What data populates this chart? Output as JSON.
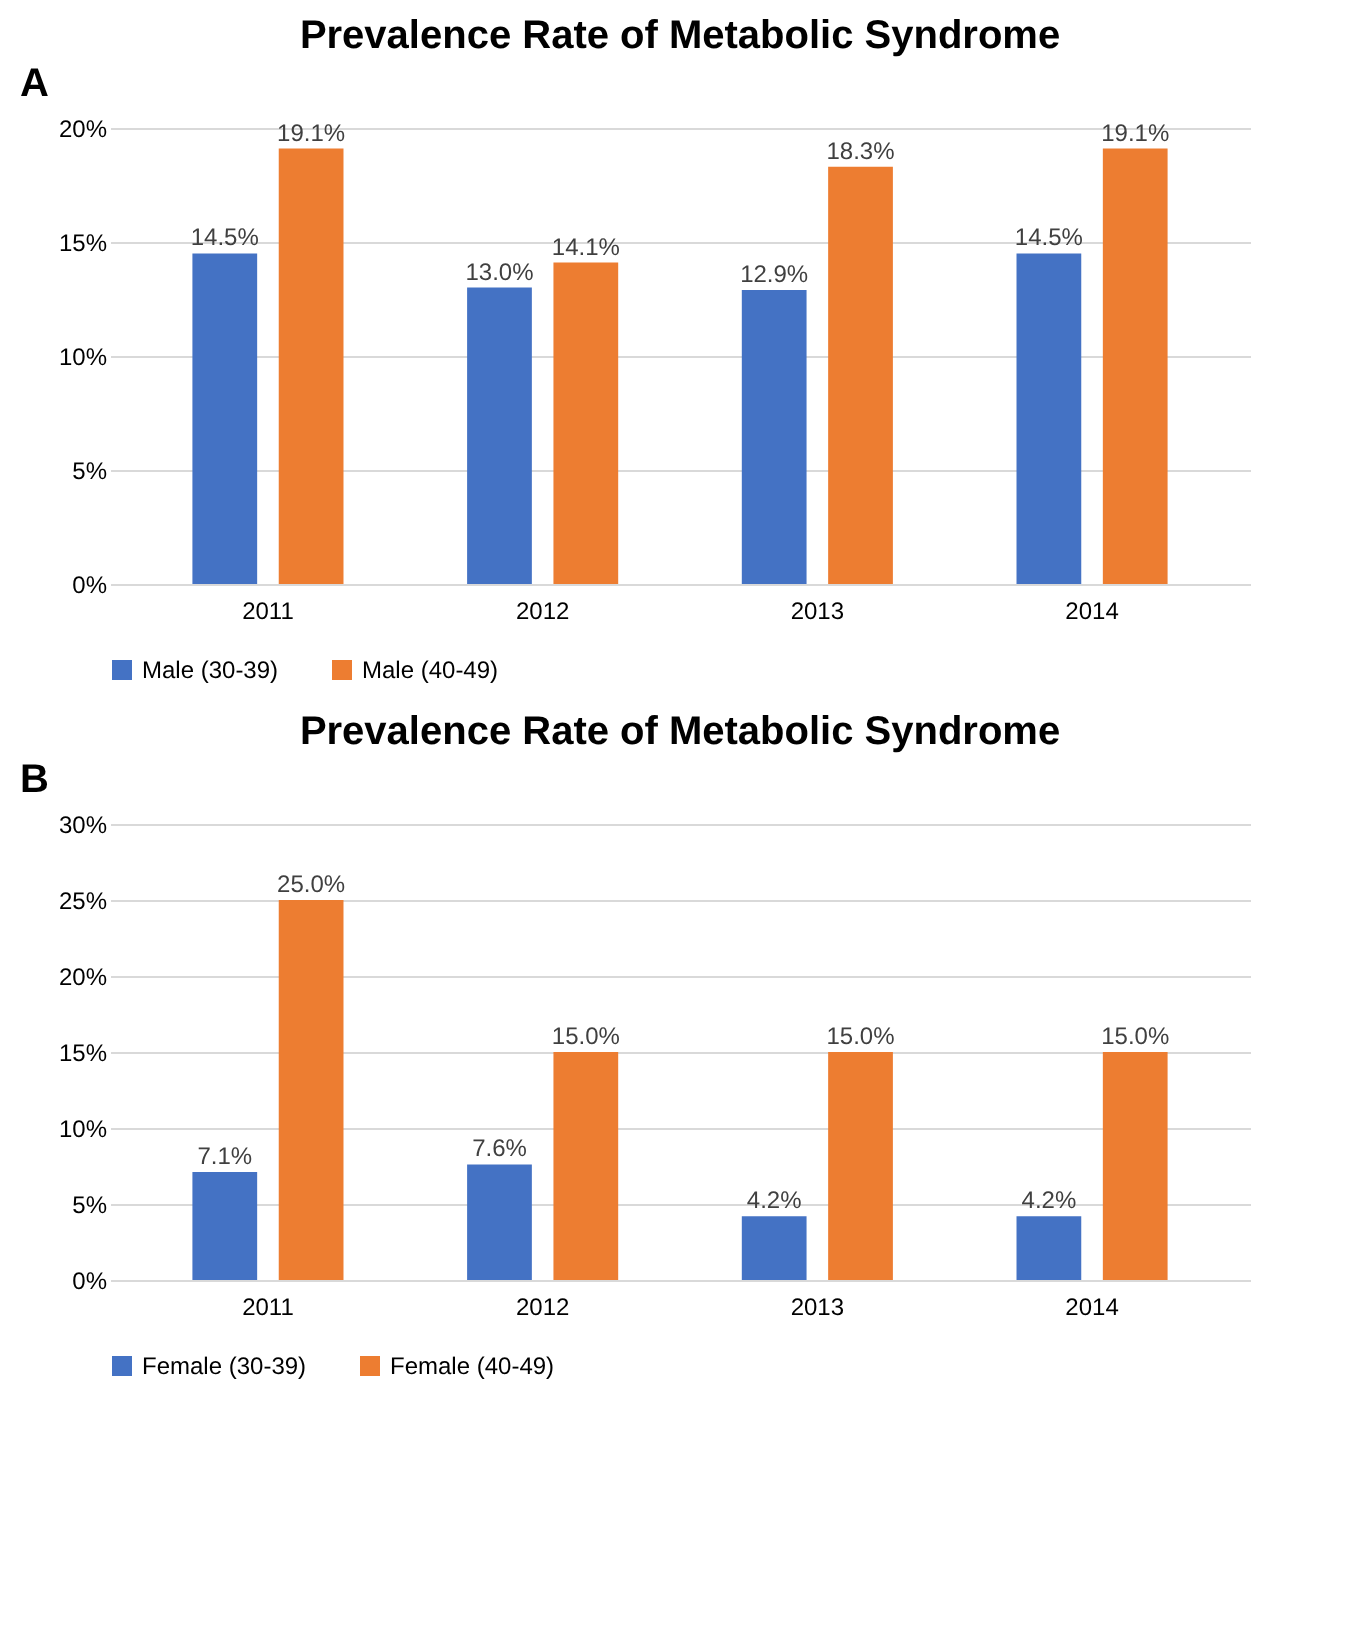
{
  "chart_data": [
    {
      "type": "bar",
      "title": "Prevalence Rate of Metabolic Syndrome",
      "annotations": [
        "A"
      ],
      "categories": [
        "2011",
        "2012",
        "2013",
        "2014"
      ],
      "series": [
        {
          "name": "Male (30-39)",
          "color": "#4472c4",
          "values": [
            14.5,
            13.0,
            12.9,
            14.5
          ],
          "value_labels": [
            "14.5%",
            "13.0%",
            "12.9%",
            "14.5%"
          ]
        },
        {
          "name": "Male (40-49)",
          "color": "#ed7d31",
          "values": [
            19.1,
            14.1,
            18.3,
            19.1
          ],
          "value_labels": [
            "19.1%",
            "14.1%",
            "18.3%",
            "19.1%"
          ]
        }
      ],
      "ylim": [
        0,
        20
      ],
      "yticks": [
        {
          "value": 0,
          "label": "0%"
        },
        {
          "value": 5,
          "label": "5%"
        },
        {
          "value": 10,
          "label": "10%"
        },
        {
          "value": 15,
          "label": "15%"
        },
        {
          "value": 20,
          "label": "20%"
        }
      ],
      "grid": "y",
      "legend": "bottom"
    },
    {
      "type": "bar",
      "title": "Prevalence Rate of Metabolic Syndrome",
      "annotations": [
        "B"
      ],
      "categories": [
        "2011",
        "2012",
        "2013",
        "2014"
      ],
      "series": [
        {
          "name": "Female (30-39)",
          "color": "#4472c4",
          "values": [
            7.1,
            7.6,
            4.2,
            4.2
          ],
          "value_labels": [
            "7.1%",
            "7.6%",
            "4.2%",
            "4.2%"
          ]
        },
        {
          "name": "Female (40-49)",
          "color": "#ed7d31",
          "values": [
            25.0,
            15.0,
            15.0,
            15.0
          ],
          "value_labels": [
            "25.0%",
            "15.0%",
            "15.0%",
            "15.0%"
          ]
        }
      ],
      "ylim": [
        0,
        30
      ],
      "yticks": [
        {
          "value": 0,
          "label": "0%"
        },
        {
          "value": 5,
          "label": "5%"
        },
        {
          "value": 10,
          "label": "10%"
        },
        {
          "value": 15,
          "label": "15%"
        },
        {
          "value": 20,
          "label": "20%"
        },
        {
          "value": 25,
          "label": "25%"
        },
        {
          "value": 30,
          "label": "30%"
        }
      ],
      "grid": "y",
      "legend": "bottom"
    }
  ]
}
